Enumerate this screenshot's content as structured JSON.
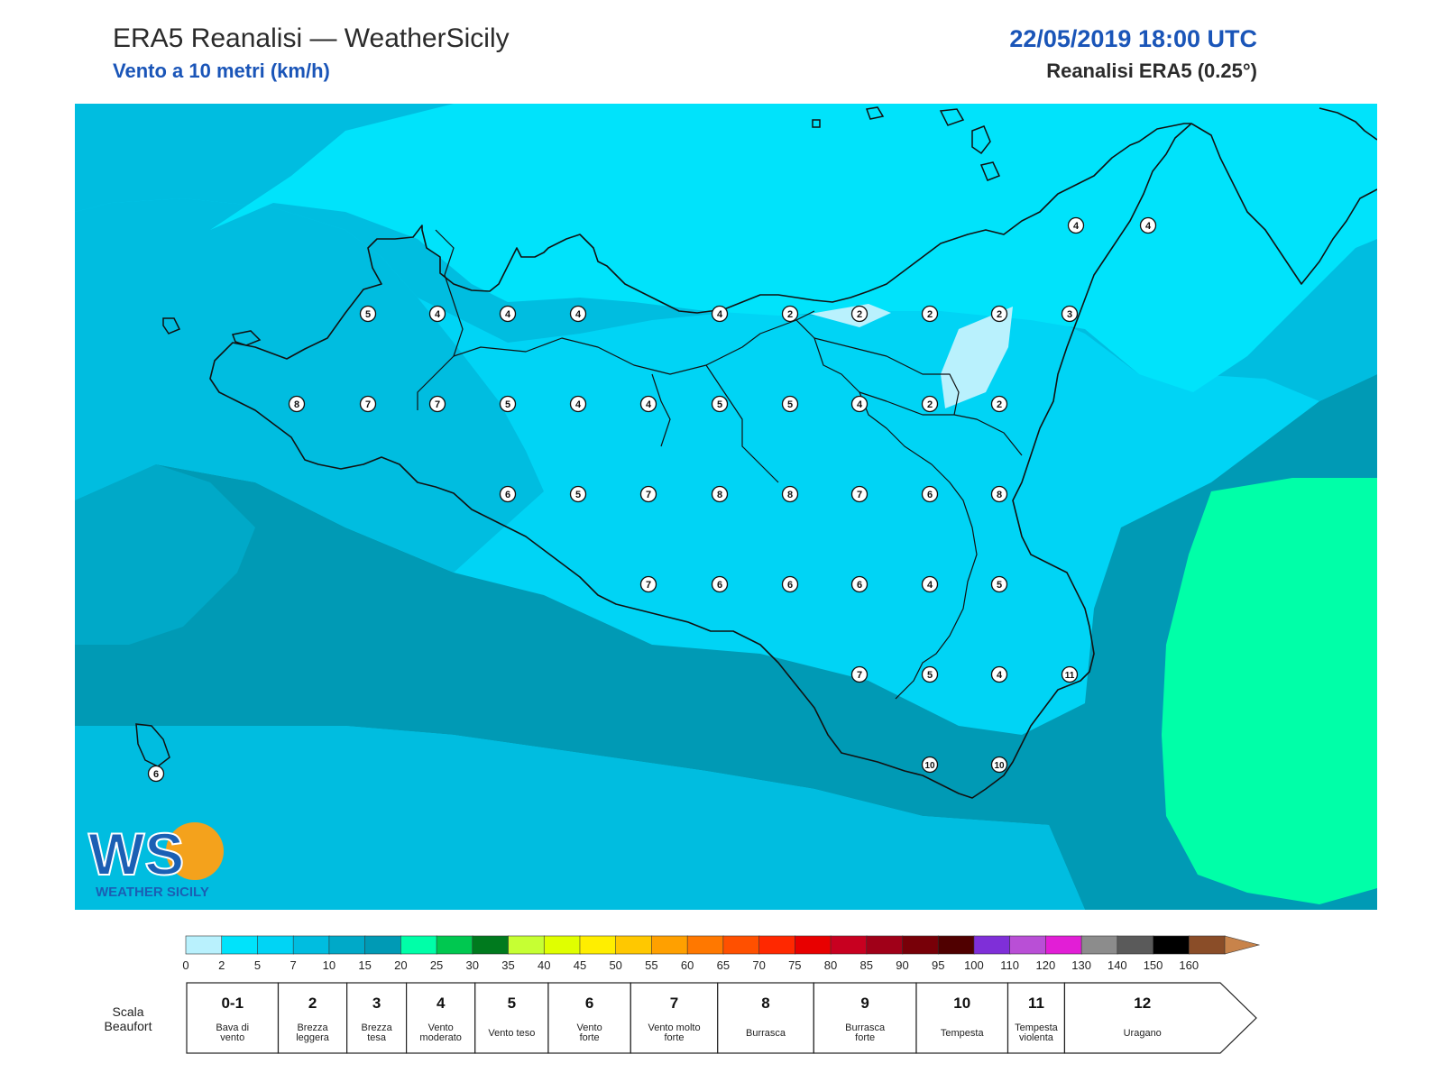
{
  "header": {
    "title": "ERA5 Reanalisi — WeatherSicily",
    "subtitle": "Vento a 10 metri (km/h)",
    "datetime": "22/05/2019 18:00 UTC",
    "source": "Reanalisi ERA5 (0.25°)"
  },
  "logo": {
    "text": "WEATHER SICILY",
    "letters": "WS"
  },
  "colors": {
    "sea_light": "#00d4f5",
    "sea_mid": "#00bde0",
    "sea_dark": "#009ab5",
    "land_strong": "#00e3fb",
    "calm": "#b9f1fd",
    "green": "#00ffa8",
    "coast": "#111111"
  },
  "wind_stations": [
    {
      "value": "4"
    },
    {
      "value": "4"
    },
    {
      "value": "5"
    },
    {
      "value": "4"
    },
    {
      "value": "4"
    },
    {
      "value": "4"
    },
    {
      "value": "4"
    },
    {
      "value": "2"
    },
    {
      "value": "2"
    },
    {
      "value": "2"
    },
    {
      "value": "2"
    },
    {
      "value": "3"
    },
    {
      "value": "8"
    },
    {
      "value": "7"
    },
    {
      "value": "7"
    },
    {
      "value": "5"
    },
    {
      "value": "4"
    },
    {
      "value": "4"
    },
    {
      "value": "5"
    },
    {
      "value": "5"
    },
    {
      "value": "4"
    },
    {
      "value": "2"
    },
    {
      "value": "2"
    },
    {
      "value": "6"
    },
    {
      "value": "5"
    },
    {
      "value": "7"
    },
    {
      "value": "8"
    },
    {
      "value": "8"
    },
    {
      "value": "7"
    },
    {
      "value": "6"
    },
    {
      "value": "8"
    },
    {
      "value": "7"
    },
    {
      "value": "6"
    },
    {
      "value": "6"
    },
    {
      "value": "6"
    },
    {
      "value": "4"
    },
    {
      "value": "5"
    },
    {
      "value": "7"
    },
    {
      "value": "5"
    },
    {
      "value": "4"
    },
    {
      "value": "11"
    },
    {
      "value": "10"
    },
    {
      "value": "10"
    },
    {
      "value": "6"
    }
  ],
  "colorbar": {
    "ticks": [
      "0",
      "2",
      "5",
      "7",
      "10",
      "15",
      "20",
      "25",
      "30",
      "35",
      "40",
      "45",
      "50",
      "55",
      "60",
      "65",
      "70",
      "75",
      "80",
      "85",
      "90",
      "95",
      "100",
      "110",
      "120",
      "130",
      "140",
      "150",
      "160"
    ],
    "colors": [
      "#b9f1fd",
      "#00e3fb",
      "#00d4f5",
      "#00bde0",
      "#00a9c8",
      "#009ab5",
      "#00ffa8",
      "#00c850",
      "#007a1e",
      "#c6ff33",
      "#e0ff00",
      "#ffee00",
      "#ffc800",
      "#ffa000",
      "#ff7800",
      "#ff5000",
      "#ff2800",
      "#e80000",
      "#c80020",
      "#a00018",
      "#780008",
      "#500000",
      "#7f2fd8",
      "#b94fd6",
      "#e21ed6",
      "#8c8c8c",
      "#5a5a5a",
      "#000000",
      "#8a4d28",
      "#c8834a"
    ]
  },
  "beaufort": {
    "label_line1": "Scala",
    "label_line2": "Beaufort",
    "classes": [
      {
        "num": "0-1",
        "name1": "Bava di",
        "name2": "vento"
      },
      {
        "num": "2",
        "name1": "Brezza",
        "name2": "leggera"
      },
      {
        "num": "3",
        "name1": "Brezza",
        "name2": "tesa"
      },
      {
        "num": "4",
        "name1": "Vento",
        "name2": "moderato"
      },
      {
        "num": "5",
        "name1": "Vento teso",
        "name2": ""
      },
      {
        "num": "6",
        "name1": "Vento",
        "name2": "forte"
      },
      {
        "num": "7",
        "name1": "Vento molto",
        "name2": "forte"
      },
      {
        "num": "8",
        "name1": "Burrasca",
        "name2": ""
      },
      {
        "num": "9",
        "name1": "Burrasca",
        "name2": "forte"
      },
      {
        "num": "10",
        "name1": "Tempesta",
        "name2": ""
      },
      {
        "num": "11",
        "name1": "Tempesta",
        "name2": "violenta"
      },
      {
        "num": "12",
        "name1": "Uragano",
        "name2": ""
      }
    ]
  }
}
